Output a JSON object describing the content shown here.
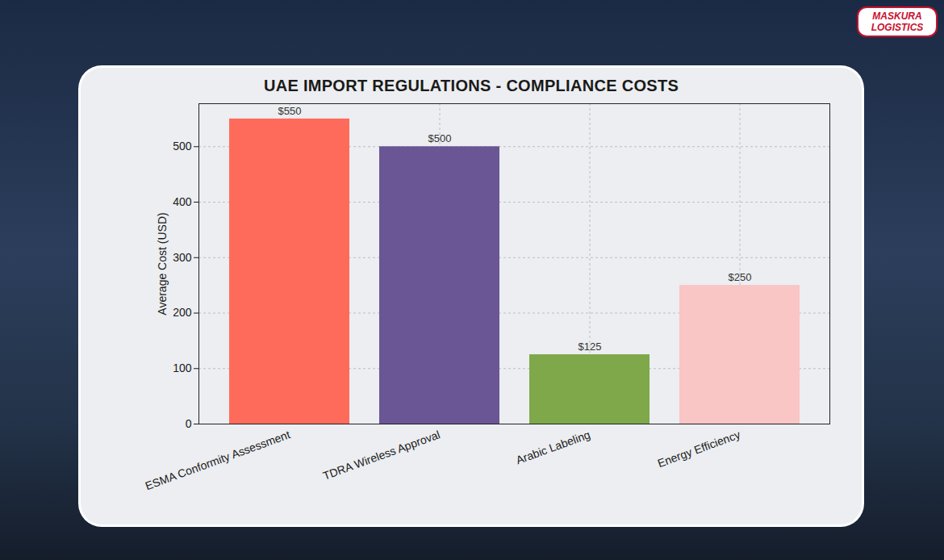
{
  "chart_data": {
    "type": "bar",
    "title": "UAE IMPORT REGULATIONS - COMPLIANCE COSTS",
    "y_label": "Average Cost (USD)",
    "categories": [
      "ESMA Conformity Assessment",
      "TDRA Wireless Approval",
      "Arabic Labeling",
      "Energy Efficiency"
    ],
    "values": [
      550,
      500,
      125,
      250
    ],
    "value_labels": [
      "$550",
      "$500",
      "$125",
      "$250"
    ],
    "colors": [
      "#ff6b5b",
      "#6a5694",
      "#7ea84a",
      "#f9c5c5"
    ],
    "ylim": [
      0,
      577.5
    ],
    "yticks": [
      0,
      100,
      200,
      300,
      400,
      500
    ],
    "grid": true,
    "data_labels": true,
    "annotations": [
      "MASKURA LOGISTICS"
    ]
  }
}
